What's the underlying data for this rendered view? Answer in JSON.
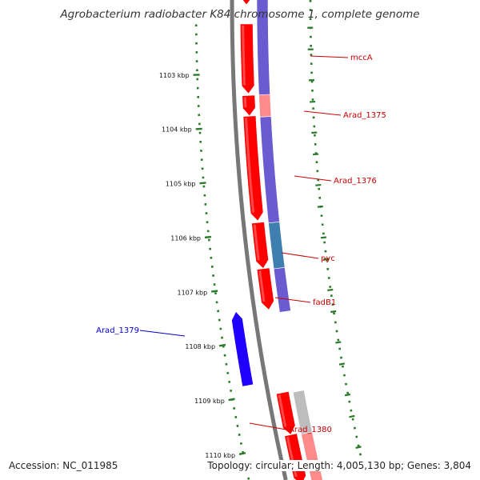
{
  "title": "Agrobacterium radiobacter K84 chromosome 1, complete genome",
  "footer": {
    "accession": "Accession: NC_011985",
    "summary": "Topology: circular; Length: 4,005,130 bp; Genes: 3,804"
  },
  "colors": {
    "backbone": "#777777",
    "tick": "#2a7a2a",
    "forward_cds": "#ff0000",
    "forward_label": "#cc0000",
    "reverse_cds": "#1f00ff",
    "reverse_label": "#0000cc",
    "band_default": "#6a5bd0",
    "band_light": "#ff8a8a",
    "band_pyc": "#3f7fb0",
    "band_grey": "#bdbdbd"
  },
  "scale_ticks": [
    {
      "kbp": 1103,
      "label": "1103 kbp"
    },
    {
      "kbp": 1104,
      "label": "1104 kbp"
    },
    {
      "kbp": 1105,
      "label": "1105 kbp"
    },
    {
      "kbp": 1106,
      "label": "1106 kbp"
    },
    {
      "kbp": 1107,
      "label": "1107 kbp"
    },
    {
      "kbp": 1108,
      "label": "1108 kbp"
    },
    {
      "kbp": 1109,
      "label": "1109 kbp"
    },
    {
      "kbp": 1110,
      "label": "1110 kbp"
    }
  ],
  "genes": [
    {
      "name": "mccA",
      "strand": "+"
    },
    {
      "name": "Arad_1375",
      "strand": "+"
    },
    {
      "name": "Arad_1376",
      "strand": "+"
    },
    {
      "name": "pyc",
      "strand": "+"
    },
    {
      "name": "fadB1",
      "strand": "+"
    },
    {
      "name": "Arad_1379",
      "strand": "-"
    },
    {
      "name": "Arad_1380",
      "strand": "+"
    }
  ]
}
